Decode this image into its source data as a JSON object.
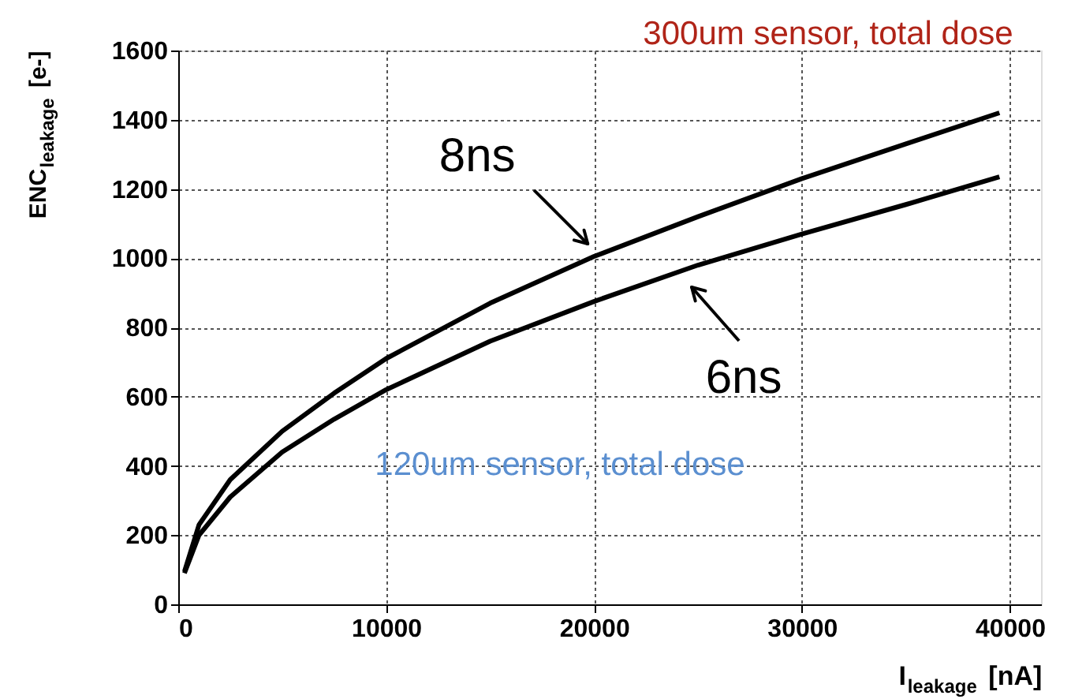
{
  "chart_data": {
    "type": "line",
    "xlabel": "I$_{leakage}$ [nA]",
    "ylabel": "ENC$_{leakage}$ [e-]",
    "xlim": [
      0,
      41500
    ],
    "ylim": [
      0,
      1600
    ],
    "xticks": [
      0,
      10000,
      20000,
      30000,
      40000
    ],
    "yticks": [
      0,
      200,
      400,
      600,
      800,
      1000,
      1200,
      1400,
      1600
    ],
    "grid": true,
    "marker": "none",
    "line_style": "solid",
    "series": [
      {
        "name": "8ns",
        "color": "#000000",
        "x": [
          300,
          1000,
          2500,
          5000,
          7500,
          10000,
          15000,
          20000,
          25000,
          30000,
          35000,
          39500
        ],
        "values": [
          95,
          230,
          360,
          500,
          610,
          710,
          870,
          1005,
          1120,
          1230,
          1330,
          1420
        ]
      },
      {
        "name": "6ns",
        "color": "#000000",
        "x": [
          300,
          1000,
          2500,
          5000,
          7500,
          10000,
          15000,
          20000,
          25000,
          30000,
          35000,
          39500
        ],
        "values": [
          90,
          200,
          310,
          440,
          535,
          620,
          760,
          875,
          980,
          1070,
          1155,
          1235
        ]
      }
    ],
    "annotations": [
      "120um sensor, total dose",
      "300um sensor, total dose"
    ]
  }
}
